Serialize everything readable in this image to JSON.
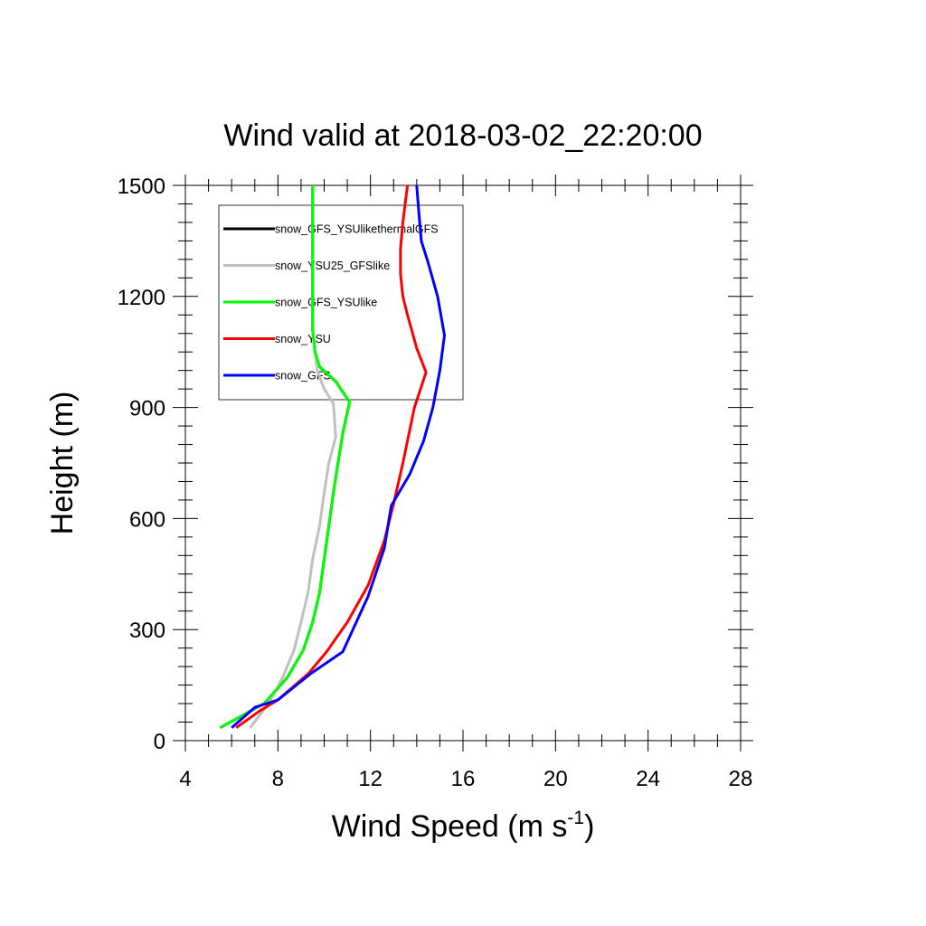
{
  "chart_data": {
    "type": "line",
    "title": "Wind valid at 2018-03-02_22:20:00",
    "xlabel": "Wind Speed (m s",
    "xlabel_sup": "-1",
    "xlabel_end": ")",
    "ylabel": "Height (m)",
    "xlim": [
      4,
      28
    ],
    "ylim": [
      0,
      1500
    ],
    "xticks": [
      4,
      8,
      12,
      16,
      20,
      24,
      28
    ],
    "yticks": [
      0,
      300,
      600,
      900,
      1200,
      1500
    ],
    "x_minor_step": 1,
    "y_minor_step": 50,
    "grid": false,
    "legend_placement": "top-left",
    "series": [
      {
        "name": "snow_GFS_YSUlikethermalGFS",
        "color": "#000000",
        "points": [
          [
            5.5,
            35
          ],
          [
            7.4,
            100
          ],
          [
            8.4,
            170
          ],
          [
            9.1,
            245
          ],
          [
            9.5,
            320
          ],
          [
            9.8,
            400
          ],
          [
            10.0,
            490
          ],
          [
            10.2,
            580
          ],
          [
            10.4,
            670
          ],
          [
            10.6,
            750
          ],
          [
            10.8,
            830
          ],
          [
            11.1,
            915
          ],
          [
            10.5,
            970
          ],
          [
            9.8,
            1010
          ],
          [
            9.6,
            1050
          ],
          [
            9.5,
            1110
          ],
          [
            9.5,
            1200
          ],
          [
            9.5,
            1300
          ],
          [
            9.5,
            1400
          ],
          [
            9.5,
            1500
          ]
        ]
      },
      {
        "name": "snow_YSU25_GFSlike",
        "color": "#c0c0c0",
        "points": [
          [
            6.8,
            35
          ],
          [
            7.6,
            100
          ],
          [
            8.2,
            170
          ],
          [
            8.7,
            245
          ],
          [
            9.0,
            320
          ],
          [
            9.3,
            400
          ],
          [
            9.5,
            490
          ],
          [
            9.8,
            580
          ],
          [
            10.0,
            670
          ],
          [
            10.2,
            750
          ],
          [
            10.5,
            820
          ],
          [
            10.4,
            910
          ],
          [
            10.0,
            950
          ],
          [
            9.7,
            1000
          ],
          [
            9.6,
            1050
          ],
          [
            9.5,
            1110
          ],
          [
            9.5,
            1200
          ],
          [
            9.5,
            1300
          ],
          [
            9.5,
            1400
          ],
          [
            9.5,
            1500
          ]
        ]
      },
      {
        "name": "snow_GFS_YSUlike",
        "color": "#00ff00",
        "points": [
          [
            5.5,
            35
          ],
          [
            7.4,
            100
          ],
          [
            8.4,
            170
          ],
          [
            9.1,
            245
          ],
          [
            9.5,
            320
          ],
          [
            9.8,
            400
          ],
          [
            10.0,
            490
          ],
          [
            10.2,
            580
          ],
          [
            10.4,
            670
          ],
          [
            10.6,
            750
          ],
          [
            10.8,
            830
          ],
          [
            11.1,
            915
          ],
          [
            10.5,
            970
          ],
          [
            9.8,
            1010
          ],
          [
            9.6,
            1050
          ],
          [
            9.5,
            1110
          ],
          [
            9.5,
            1200
          ],
          [
            9.5,
            1300
          ],
          [
            9.5,
            1400
          ],
          [
            9.5,
            1500
          ]
        ]
      },
      {
        "name": "snow_YSU",
        "color": "#ff0000",
        "points": [
          [
            6.2,
            35
          ],
          [
            7.2,
            80
          ],
          [
            8.0,
            110
          ],
          [
            9.3,
            180
          ],
          [
            10.1,
            240
          ],
          [
            11.0,
            320
          ],
          [
            11.9,
            420
          ],
          [
            12.6,
            540
          ],
          [
            13.0,
            640
          ],
          [
            13.4,
            750
          ],
          [
            13.9,
            900
          ],
          [
            14.4,
            995
          ],
          [
            14.0,
            1060
          ],
          [
            13.6,
            1150
          ],
          [
            13.4,
            1200
          ],
          [
            13.3,
            1260
          ],
          [
            13.3,
            1330
          ],
          [
            13.4,
            1400
          ],
          [
            13.5,
            1450
          ],
          [
            13.6,
            1500
          ]
        ]
      },
      {
        "name": "snow_GFS",
        "color": "#0000ff",
        "points": [
          [
            6.0,
            35
          ],
          [
            7.0,
            90
          ],
          [
            8.0,
            110
          ],
          [
            9.4,
            180
          ],
          [
            10.8,
            240
          ],
          [
            11.9,
            390
          ],
          [
            12.6,
            520
          ],
          [
            12.9,
            635
          ],
          [
            13.7,
            720
          ],
          [
            14.3,
            810
          ],
          [
            14.7,
            900
          ],
          [
            15.0,
            1000
          ],
          [
            15.2,
            1095
          ],
          [
            14.9,
            1200
          ],
          [
            14.5,
            1290
          ],
          [
            14.2,
            1350
          ],
          [
            14.1,
            1420
          ],
          [
            14.0,
            1500
          ]
        ]
      }
    ]
  }
}
